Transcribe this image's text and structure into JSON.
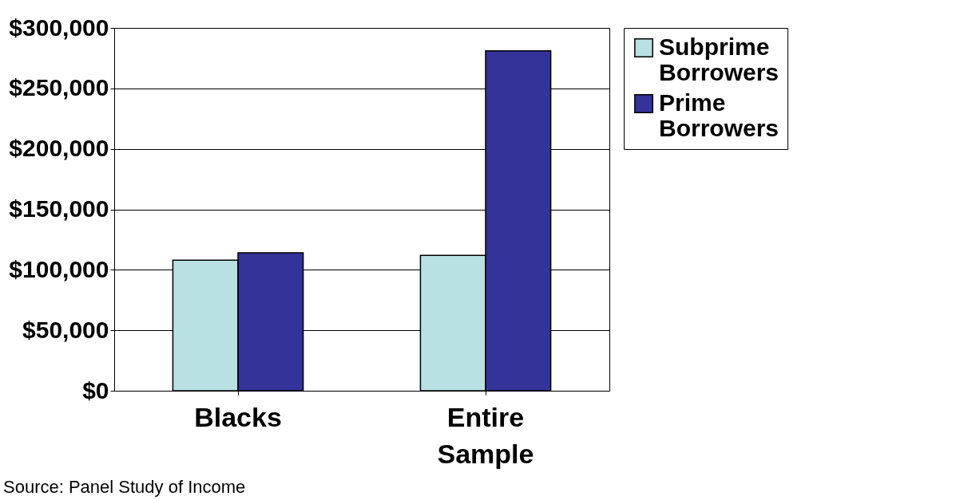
{
  "chart_data": {
    "type": "bar",
    "categories": [
      "Blacks",
      "Entire Sample"
    ],
    "series": [
      {
        "name": "Subprime Borrowers",
        "color": "#b9e0e3",
        "values": [
          108000,
          112000
        ]
      },
      {
        "name": "Prime Borrowers",
        "color": "#333399",
        "values": [
          114000,
          281000
        ]
      }
    ],
    "ylim": [
      0,
      300000
    ],
    "yticks": [
      {
        "value": 0,
        "label": "$0"
      },
      {
        "value": 50000,
        "label": "$50,000"
      },
      {
        "value": 100000,
        "label": "$100,000"
      },
      {
        "value": 150000,
        "label": "$150,000"
      },
      {
        "value": 200000,
        "label": "$200,000"
      },
      {
        "value": 250000,
        "label": "$250,000"
      },
      {
        "value": 300000,
        "label": "$300,000"
      }
    ],
    "grid": "y",
    "legend": "right",
    "annotations": [
      "Source: Panel Study of Income"
    ]
  }
}
